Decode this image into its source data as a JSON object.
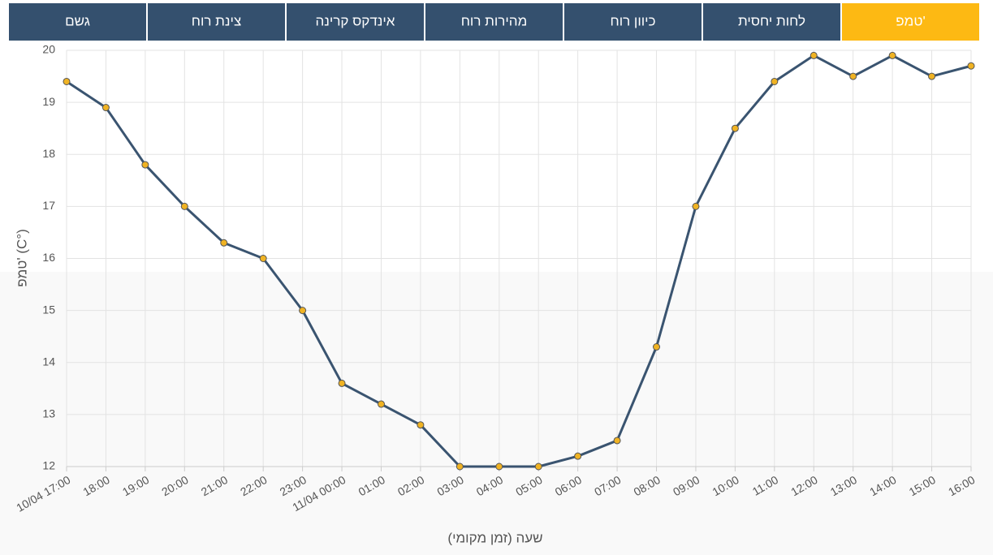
{
  "tabs": [
    {
      "label": "טמפ'",
      "active": true
    },
    {
      "label": "לחות יחסית",
      "active": false
    },
    {
      "label": "כיוון רוח",
      "active": false
    },
    {
      "label": "מהירות רוח",
      "active": false
    },
    {
      "label": "אינדקס קרינה",
      "active": false
    },
    {
      "label": "צינת רוח",
      "active": false
    },
    {
      "label": "גשם",
      "active": false
    }
  ],
  "chart_data": {
    "type": "line",
    "xlabel": "שעה (זמן מקומי)",
    "ylabel": "טמפ' (C°)",
    "categories": [
      "10/04 17:00",
      "18:00",
      "19:00",
      "20:00",
      "21:00",
      "22:00",
      "23:00",
      "11/04 00:00",
      "01:00",
      "02:00",
      "03:00",
      "04:00",
      "05:00",
      "06:00",
      "07:00",
      "08:00",
      "09:00",
      "10:00",
      "11:00",
      "12:00",
      "13:00",
      "14:00",
      "15:00",
      "16:00"
    ],
    "series": [
      {
        "color": "#3a5470",
        "marker_color": "#f0b323",
        "values": [
          19.4,
          18.9,
          17.8,
          17.0,
          16.3,
          16.0,
          15.0,
          13.6,
          13.2,
          12.8,
          12.0,
          12.0,
          12.0,
          12.2,
          12.5,
          14.3,
          17.0,
          18.5,
          19.4,
          19.9,
          19.5,
          19.9,
          19.5,
          19.7
        ]
      }
    ],
    "ylim": [
      12,
      20
    ],
    "yticks": [
      12,
      13,
      14,
      15,
      16,
      17,
      18,
      19,
      20
    ],
    "grid": true
  }
}
